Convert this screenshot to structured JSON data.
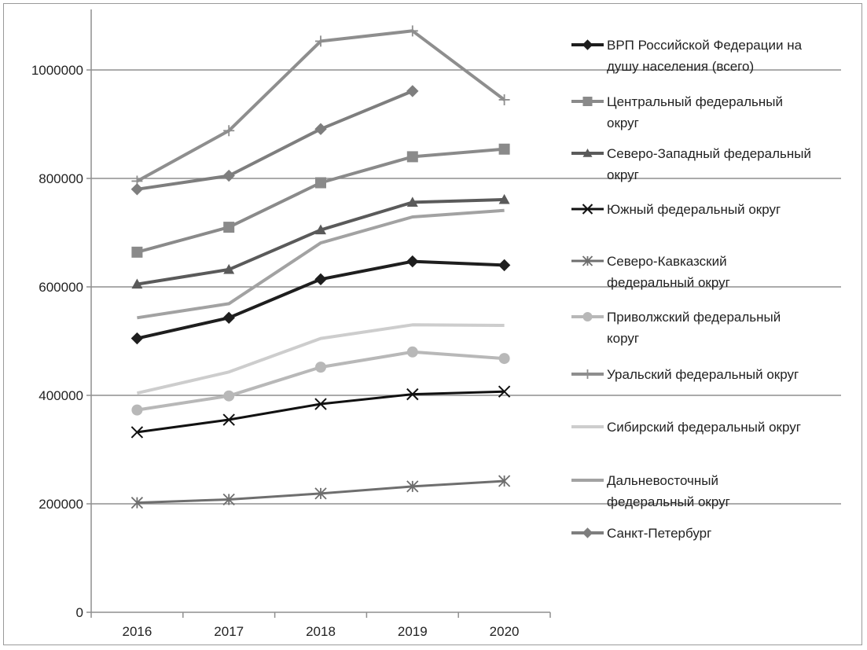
{
  "chart_data": {
    "type": "line",
    "title": "",
    "xlabel": "",
    "ylabel": "",
    "categories": [
      "2016",
      "2017",
      "2018",
      "2019",
      "2020"
    ],
    "ylim": [
      0,
      1100000
    ],
    "yticks": [
      0,
      200000,
      400000,
      600000,
      800000,
      1000000
    ],
    "ytick_labels": [
      "0",
      "200000",
      "400000",
      "600000",
      "800000",
      "1000000"
    ],
    "grid": true,
    "legend_position": "right",
    "series": [
      {
        "name": "ВРП Российской Федерации на душу населения (всего)",
        "legend_lines": [
          "ВРП Российской Федерации на",
          "душу населения (всего)"
        ],
        "color": "#1e1e1e",
        "marker": "diamond",
        "width": 4,
        "values": [
          505000,
          543000,
          614000,
          647000,
          640000
        ]
      },
      {
        "name": "Центральный федеральный округ",
        "legend_lines": [
          "Центральный федеральный",
          "округ"
        ],
        "color": "#8a8a8a",
        "marker": "square",
        "width": 4,
        "values": [
          664000,
          710000,
          792000,
          840000,
          854000
        ]
      },
      {
        "name": "Северо-Западный федеральный округ",
        "legend_lines": [
          "Северо-Западный федеральный",
          "округ"
        ],
        "color": "#5a5a5a",
        "marker": "triangle",
        "width": 4,
        "values": [
          605000,
          632000,
          705000,
          756000,
          761000
        ]
      },
      {
        "name": "Южный федеральный округ",
        "legend_lines": [
          "Южный федеральный округ"
        ],
        "color": "#111111",
        "marker": "x",
        "width": 3,
        "values": [
          332000,
          355000,
          384000,
          402000,
          407000
        ]
      },
      {
        "name": "Северо-Кавказский федеральный округ",
        "legend_lines": [
          "Северо-Кавказский",
          "федеральный округ"
        ],
        "color": "#6e6e6e",
        "marker": "asterisk",
        "width": 3,
        "values": [
          202000,
          208000,
          219000,
          232000,
          242000
        ]
      },
      {
        "name": "Приволжский федеральный коруг",
        "legend_lines": [
          "Приволжский федеральный",
          "коруг"
        ],
        "color": "#b8b8b8",
        "marker": "circle",
        "width": 4,
        "values": [
          373000,
          399000,
          452000,
          480000,
          468000
        ]
      },
      {
        "name": "Уральский федеральный округ",
        "legend_lines": [
          "Уральский федеральный округ"
        ],
        "color": "#8e8e8e",
        "marker": "plus",
        "width": 4,
        "values": [
          795000,
          888000,
          1053000,
          1072000,
          945000
        ]
      },
      {
        "name": "Сибирский федеральный округ",
        "legend_lines": [
          "Сибирский федеральный округ"
        ],
        "color": "#cdcdcd",
        "marker": "none",
        "width": 4,
        "values": [
          404000,
          443000,
          505000,
          530000,
          529000
        ]
      },
      {
        "name": "Дальневосточный федеральный округ",
        "legend_lines": [
          "Дальневосточный",
          "федеральный округ"
        ],
        "color": "#a2a2a2",
        "marker": "none",
        "width": 4,
        "values": [
          543000,
          569000,
          681000,
          729000,
          741000
        ]
      },
      {
        "name": "Санкт-Петербург",
        "legend_lines": [
          "Санкт-Петербург"
        ],
        "color": "#7e7e7e",
        "marker": "diamond",
        "width": 4,
        "values": [
          780000,
          805000,
          891000,
          961000,
          null
        ]
      }
    ]
  }
}
